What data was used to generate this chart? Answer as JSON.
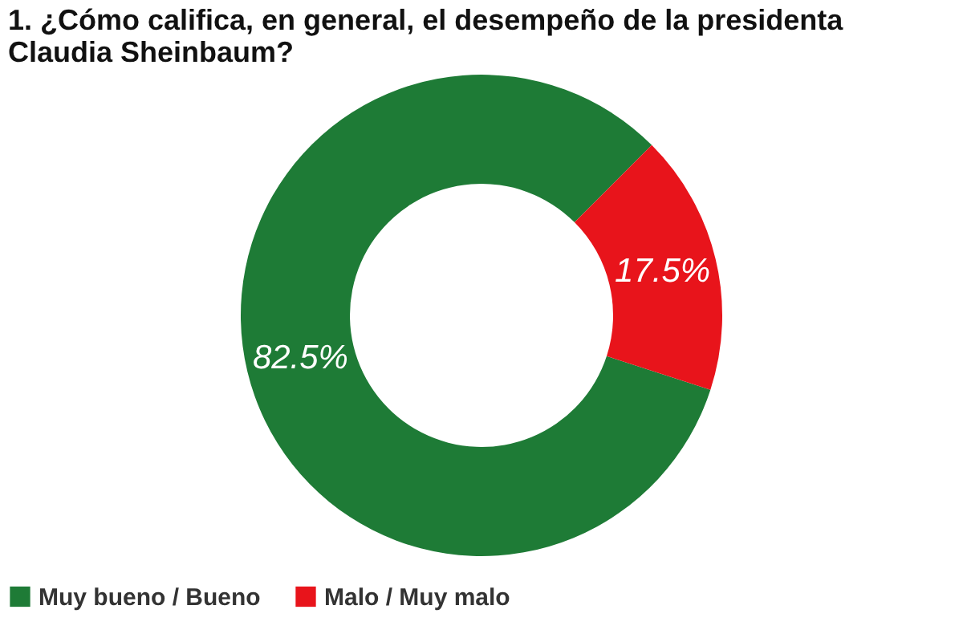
{
  "chart_data": {
    "type": "donut",
    "title": [
      "1. ¿Cómo califica, en general, el desempeño de la presidenta",
      "Claudia Sheinbaum?"
    ],
    "categories": [
      "Muy bueno / Bueno",
      "Malo / Muy malo"
    ],
    "values": [
      82.5,
      17.5
    ],
    "colors": [
      "#1e7b36",
      "#e8141b"
    ],
    "value_labels": [
      "82.5%",
      "17.5%"
    ],
    "legend": "bottom"
  }
}
